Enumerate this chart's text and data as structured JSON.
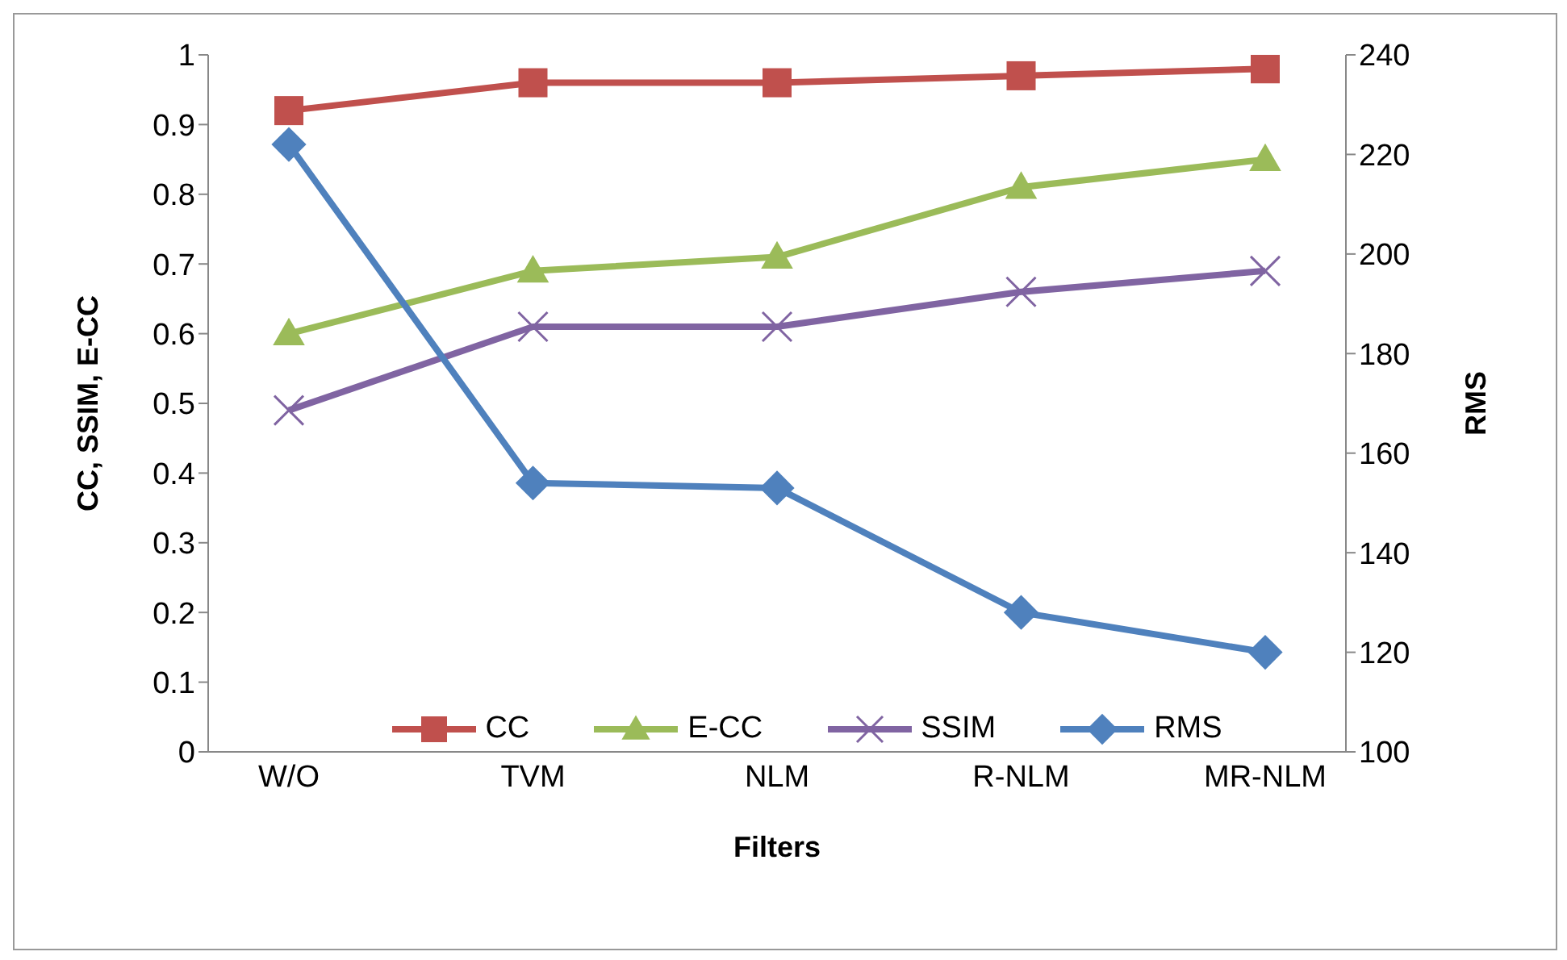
{
  "chart_data": {
    "type": "line",
    "xlabel": "Filters",
    "ylabel": "CC, SSIM, E-CC",
    "y2label": "RMS",
    "categories": [
      "W/O",
      "TVM",
      "NLM",
      "R-NLM",
      "MR-NLM"
    ],
    "series": [
      {
        "name": "CC",
        "color": "#c0504d",
        "marker": "square",
        "values": [
          0.92,
          0.96,
          0.96,
          0.97,
          0.98
        ]
      },
      {
        "name": "E-CC",
        "color": "#9bbb59",
        "marker": "triangle",
        "values": [
          0.6,
          0.69,
          0.71,
          0.81,
          0.85
        ]
      },
      {
        "name": "SSIM",
        "color": "#8064a2",
        "marker": "cross",
        "values": [
          0.49,
          0.61,
          0.61,
          0.66,
          0.69
        ]
      },
      {
        "name": "RMS",
        "color": "#4f81bd",
        "marker": "diamond",
        "axis": "y2",
        "values": [
          222,
          154,
          153,
          128,
          120
        ]
      }
    ],
    "ylim": [
      0,
      1
    ],
    "yticks": [
      0,
      0.1,
      0.2,
      0.3,
      0.4,
      0.5,
      0.6,
      0.7,
      0.8,
      0.9,
      1
    ],
    "y2lim": [
      100,
      240
    ],
    "y2ticks": [
      100,
      120,
      140,
      160,
      180,
      200,
      220,
      240
    ],
    "grid": false,
    "legend": "bottom",
    "line_style": "solid"
  }
}
